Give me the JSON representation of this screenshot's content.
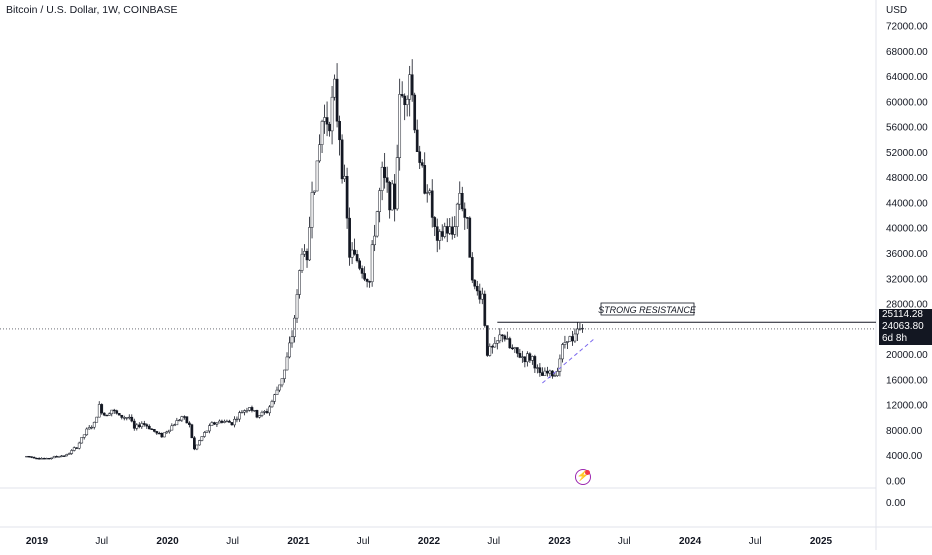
{
  "header": {
    "title": "Bitcoin / U.S. Dollar, 1W, COINBASE"
  },
  "price_axis": {
    "currency": "USD",
    "ticks": [
      "72000.00",
      "68000.00",
      "64000.00",
      "60000.00",
      "56000.00",
      "52000.00",
      "48000.00",
      "44000.00",
      "40000.00",
      "36000.00",
      "32000.00",
      "28000.00",
      "24000.00",
      "20000.00",
      "16000.00",
      "12000.00",
      "8000.00",
      "4000.00",
      "0.00"
    ],
    "sub_pane_tick": "0.00"
  },
  "time_axis": {
    "ticks": [
      "2019",
      "Jul",
      "2020",
      "Jul",
      "2021",
      "Jul",
      "2022",
      "Jul",
      "2023",
      "Jul",
      "2024",
      "Jul",
      "2025"
    ]
  },
  "badges": {
    "resistance_price": "25114.28",
    "current_price": "24063.80",
    "countdown": "6d 8h"
  },
  "annotation": {
    "label": "STRONG RESISTANCE",
    "price": 25114.28
  },
  "colors": {
    "up": "#ffffff",
    "down": "#131722",
    "wick": "#131722",
    "trend": "#7b68ee",
    "accent": "#9c27b0"
  },
  "chart_data": {
    "type": "candlestick",
    "title": "Bitcoin / U.S. Dollar, 1W, COINBASE",
    "ylabel": "USD",
    "ylim": [
      0,
      72000
    ],
    "x_ticks": [
      "2019",
      "Jul",
      "2020",
      "Jul",
      "2021",
      "Jul",
      "2022",
      "Jul",
      "2023",
      "Jul",
      "2024",
      "Jul",
      "2025"
    ],
    "grid": false,
    "current_price": 24063.8,
    "series": [
      {
        "values": [
          [
            "2018-12-03",
            3900
          ],
          [
            "2018-12-31",
            3700
          ],
          [
            "2019-01-28",
            3500
          ],
          [
            "2019-02-25",
            3900
          ],
          [
            "2019-03-25",
            4100
          ],
          [
            "2019-04-22",
            5400
          ],
          [
            "2019-05-20",
            8000
          ],
          [
            "2019-06-10",
            9000
          ],
          [
            "2019-06-24",
            11800
          ],
          [
            "2019-07-08",
            10500
          ],
          [
            "2019-07-29",
            11300
          ],
          [
            "2019-08-19",
            10200
          ],
          [
            "2019-09-16",
            10100
          ],
          [
            "2019-09-30",
            8200
          ],
          [
            "2019-10-21",
            9200
          ],
          [
            "2019-11-11",
            8500
          ],
          [
            "2019-12-02",
            7500
          ],
          [
            "2019-12-16",
            7200
          ],
          [
            "2020-01-13",
            8700
          ],
          [
            "2020-02-10",
            10200
          ],
          [
            "2020-03-02",
            8800
          ],
          [
            "2020-03-16",
            5000
          ],
          [
            "2020-04-06",
            7000
          ],
          [
            "2020-05-04",
            9000
          ],
          [
            "2020-06-01",
            9500
          ],
          [
            "2020-06-29",
            9200
          ],
          [
            "2020-07-27",
            11000
          ],
          [
            "2020-08-17",
            11800
          ],
          [
            "2020-09-07",
            10300
          ],
          [
            "2020-10-05",
            11000
          ],
          [
            "2020-10-26",
            13400
          ],
          [
            "2020-11-23",
            17500
          ],
          [
            "2020-12-14",
            23000
          ],
          [
            "2020-12-28",
            29000
          ],
          [
            "2021-01-11",
            37000
          ],
          [
            "2021-01-25",
            34000
          ],
          [
            "2021-02-08",
            47000
          ],
          [
            "2021-02-22",
            49000
          ],
          [
            "2021-03-08",
            57000
          ],
          [
            "2021-03-29",
            58000
          ],
          [
            "2021-04-12",
            61000
          ],
          [
            "2021-04-26",
            55000
          ],
          [
            "2021-05-10",
            46000
          ],
          [
            "2021-05-24",
            36000
          ],
          [
            "2021-06-14",
            35000
          ],
          [
            "2021-06-28",
            33500
          ],
          [
            "2021-07-19",
            31500
          ],
          [
            "2021-08-02",
            40000
          ],
          [
            "2021-08-23",
            48000
          ],
          [
            "2021-09-06",
            46000
          ],
          [
            "2021-09-27",
            44000
          ],
          [
            "2021-10-11",
            60000
          ],
          [
            "2021-10-25",
            61500
          ],
          [
            "2021-11-08",
            65000
          ],
          [
            "2021-11-22",
            57000
          ],
          [
            "2021-12-06",
            49000
          ],
          [
            "2021-12-27",
            47000
          ],
          [
            "2022-01-10",
            42000
          ],
          [
            "2022-01-24",
            37000
          ],
          [
            "2022-02-14",
            40000
          ],
          [
            "2022-03-07",
            39000
          ],
          [
            "2022-03-28",
            46000
          ],
          [
            "2022-04-18",
            40000
          ],
          [
            "2022-05-09",
            30000
          ],
          [
            "2022-05-30",
            29500
          ],
          [
            "2022-06-13",
            20500
          ],
          [
            "2022-07-04",
            21000
          ],
          [
            "2022-07-25",
            23500
          ],
          [
            "2022-08-15",
            21000
          ],
          [
            "2022-09-05",
            20000
          ],
          [
            "2022-09-26",
            19500
          ],
          [
            "2022-10-17",
            19500
          ],
          [
            "2022-11-07",
            16500
          ],
          [
            "2022-11-28",
            17000
          ],
          [
            "2022-12-19",
            16800
          ],
          [
            "2023-01-09",
            21000
          ],
          [
            "2023-01-23",
            23200
          ],
          [
            "2023-02-06",
            21800
          ],
          [
            "2023-02-20",
            23500
          ],
          [
            "2023-03-06",
            24063.8
          ]
        ]
      }
    ],
    "annotations": [
      {
        "type": "horizontal_line",
        "label": "STRONG RESISTANCE",
        "y": 25114.28
      },
      {
        "type": "trendline",
        "from": [
          "2022-11-14",
          15500
        ],
        "to": [
          "2023-04-10",
          22600
        ]
      }
    ]
  }
}
